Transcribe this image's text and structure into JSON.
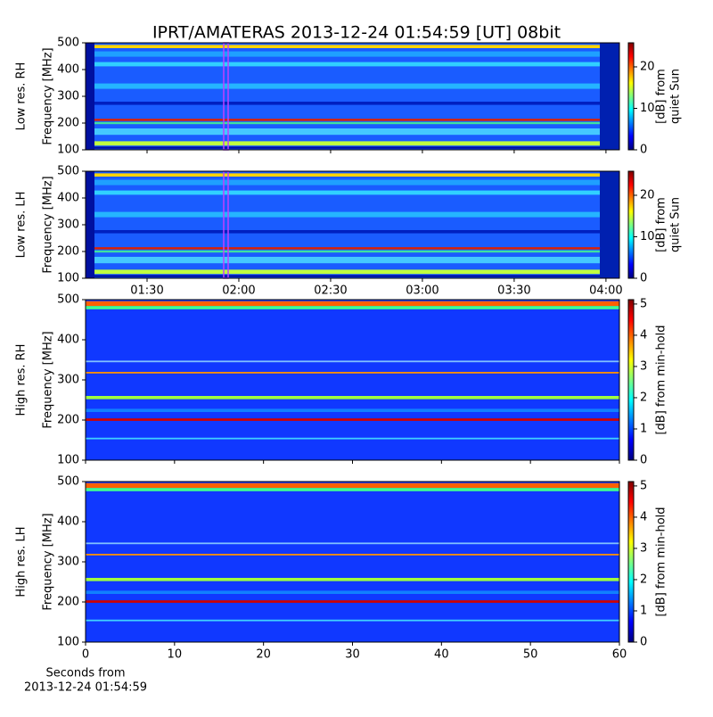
{
  "chart_data": [
    {
      "type": "spectrogram",
      "title": "IPRT/AMATERAS 2013-12-24 01:54:59 [UT]   08bit",
      "ylabel": [
        "Low res. RH",
        "Frequency [MHz]"
      ],
      "ylim": [
        100,
        500
      ],
      "yticks": [
        100,
        200,
        300,
        400,
        500
      ],
      "xlim": [
        69.9,
        244.4
      ],
      "xticks": [
        90,
        120,
        150,
        180,
        210,
        240
      ],
      "colorbar": {
        "label": [
          "[dB] from",
          "quiet Sun"
        ],
        "lim": [
          0,
          25.8
        ],
        "ticks": [
          0,
          10,
          20
        ]
      }
    },
    {
      "type": "spectrogram",
      "ylabel": [
        "Low res. LH",
        "Frequency [MHz]"
      ],
      "ylim": [
        100,
        500
      ],
      "yticks": [
        100,
        200,
        300,
        400,
        500
      ],
      "xlim": [
        69.9,
        244.4
      ],
      "xticks": [
        {
          "value": 90,
          "label": "01:30"
        },
        {
          "value": 120,
          "label": "02:00"
        },
        {
          "value": 150,
          "label": "02:30"
        },
        {
          "value": 180,
          "label": "03:00"
        },
        {
          "value": 210,
          "label": "03:30"
        },
        {
          "value": 240,
          "label": "04:00"
        }
      ],
      "colorbar": {
        "label": [
          "[dB] from",
          "quiet Sun"
        ],
        "lim": [
          0,
          25.8
        ],
        "ticks": [
          0,
          10,
          20
        ]
      }
    },
    {
      "type": "spectrogram",
      "ylabel": [
        "High res. RH",
        "Frequency [MHz]"
      ],
      "ylim": [
        100,
        500
      ],
      "yticks": [
        100,
        200,
        300,
        400,
        500
      ],
      "xlim": [
        0,
        60
      ],
      "xticks": [
        0,
        10,
        20,
        30,
        40,
        50,
        60
      ],
      "colorbar": {
        "label": [
          "[dB] from min-hold"
        ],
        "lim": [
          0,
          5.14
        ],
        "ticks": [
          0,
          1,
          2,
          3,
          4,
          5
        ]
      }
    },
    {
      "type": "spectrogram",
      "ylabel": [
        "High res. LH",
        "Frequency [MHz]"
      ],
      "ylim": [
        100,
        500
      ],
      "yticks": [
        100,
        200,
        300,
        400,
        500
      ],
      "xlim": [
        0,
        60
      ],
      "xticks": [
        0,
        10,
        20,
        30,
        40,
        50,
        60
      ],
      "xtick_labels": true,
      "xlabel": [
        "Seconds from",
        "2013-12-24 01:54:59"
      ],
      "colorbar": {
        "label": [
          "[dB] from min-hold"
        ],
        "lim": [
          0,
          5.14
        ],
        "ticks": [
          0,
          1,
          2,
          3,
          4,
          5
        ]
      }
    }
  ]
}
